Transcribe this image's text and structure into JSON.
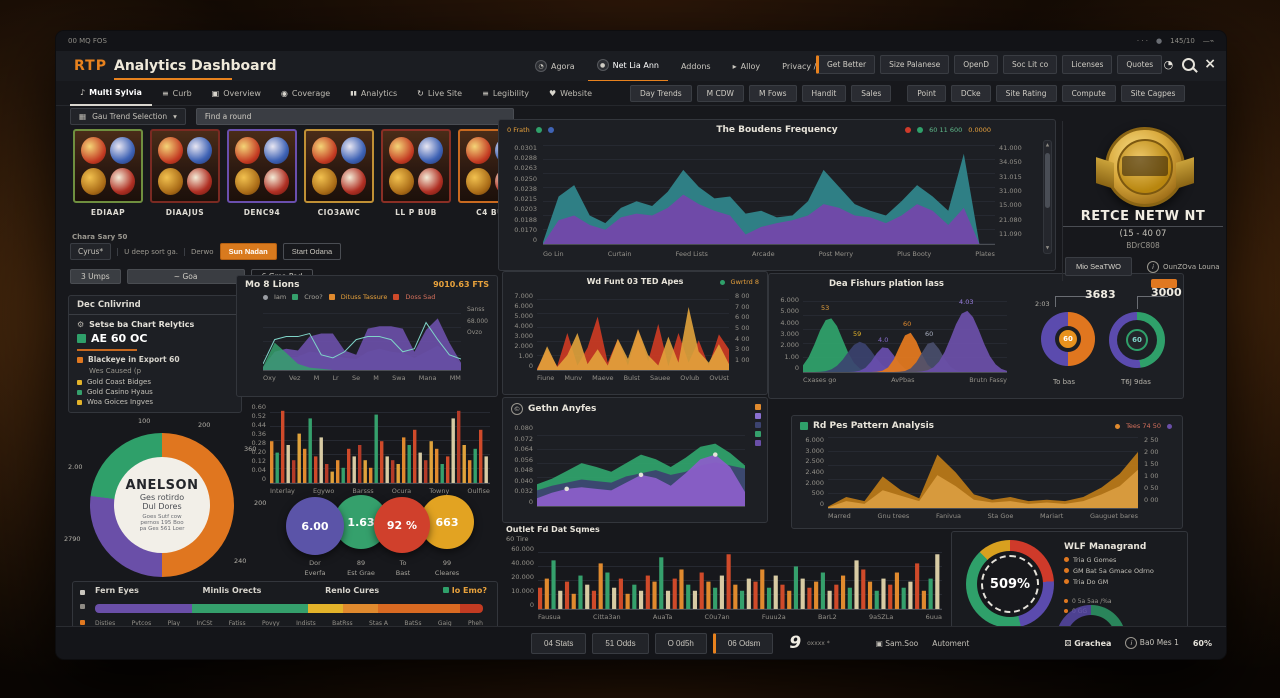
{
  "icons": {
    "gear": "⚙",
    "close": "×",
    "heart": "♥",
    "note": "♪",
    "eye": "◉",
    "pause": "▮▮",
    "sync": "↻",
    "menu": "≡",
    "caret": "▾",
    "clock": "◔",
    "pointer": "▸",
    "dice": "⚄",
    "grid": "▦",
    "box": "▣",
    "coin": "●",
    "up": "▲",
    "down": "▼",
    "dots": "⋯",
    "home": "▣"
  },
  "titlebar": {
    "left": "00  MQ FOS",
    "dots": "· · ·",
    "right": "145/10",
    "end": "—⌁"
  },
  "header": {
    "brand": "RTP",
    "title": "Analytics Dashboard",
    "tabs": [
      {
        "label": "Agora"
      },
      {
        "label": "Net Lia Ann"
      },
      {
        "label": "Addons"
      },
      {
        "label": "Alloy"
      },
      {
        "label": "Privacy / Matrices"
      }
    ],
    "pills": [
      "Get Better",
      "Size Palanese",
      "OpenD",
      "Soc Lit co",
      "Licenses",
      "Quotes"
    ]
  },
  "nav": {
    "items": [
      "Multi Sylvia",
      "Curb",
      "Overview",
      "Coverage",
      "Analytics",
      "Live Site",
      "Legibility",
      "Website"
    ],
    "pills": [
      "Day Trends",
      "M CDW",
      "M Fows",
      "Handit",
      "Sales"
    ],
    "pills2": [
      "Point",
      "DCke",
      "Site Rating",
      "Compute",
      "Site Cagpes"
    ]
  },
  "filters": {
    "dropdown": "Gau Trend Selection",
    "search": "Find a round"
  },
  "slots": {
    "items": [
      {
        "label": "EDIAAP"
      },
      {
        "label": "DIAAJUS"
      },
      {
        "label": "DENC94"
      },
      {
        "label": "CIO3AWC"
      },
      {
        "label": "LL P BUB"
      },
      {
        "label": "C4 BUB"
      }
    ]
  },
  "right_panel": {
    "title": "RETCE NETW NT",
    "sub1": "(15 - 40 07",
    "sub2": "BDrC808",
    "button": "Mio SeaTWO",
    "link": "OunZOva Louna"
  },
  "controls": {
    "caption": "Chara Sary 50",
    "field1": "Cyrus*",
    "field2": "U deep sort ga.",
    "field3": "Derwo",
    "primary": "Sun Nadan",
    "ghost": "Start Odana",
    "pill1": "3 Umps",
    "pill2": "~ Goa",
    "pill3": "6 Gma Pad"
  },
  "dec_panel": {
    "header": "Dec Cnlivrind",
    "row1": "Setse ba Chart Relytics",
    "badge": "AE 60 OC",
    "row2": "Blackeye in Export 60",
    "row3": "Wes Caused (p",
    "bullets": [
      {
        "label": "Gold Coast Bidges",
        "color": "#e3b32a"
      },
      {
        "label": "Gold Casino Hyaus",
        "color": "#35a06c"
      },
      {
        "label": "Woa Goices Ingves",
        "color": "#e3b32a"
      }
    ]
  },
  "kpis": [
    {
      "value": "6.00",
      "l1": "Dor",
      "l2": "Everfa",
      "color": "#5b54a8"
    },
    {
      "value": "1.63",
      "l1": "89",
      "l2": "Est Grae",
      "color": "#35a06c"
    },
    {
      "value": "92 %",
      "l1": "To",
      "l2": "Bast",
      "color": "#d0402c"
    },
    {
      "value": "663",
      "l1": "99",
      "l2": "Cleares",
      "color": "#e2a322"
    }
  ],
  "wlf": {
    "title": "WLF Managrand",
    "items": [
      "Tria G Gomes",
      "GM Bat 5a Gmace Odrno",
      "Tria Do GM"
    ],
    "items2": [
      "0 5a 5aa /%a",
      "0 GG"
    ]
  },
  "bottombar": {
    "buttons": [
      "04 Stats",
      "51 Odds",
      "O 0d5h",
      "06 Odsm"
    ],
    "logo": "9",
    "logo_sub": "oxxxx *",
    "mid": [
      "Sam.Soo",
      "Automent"
    ],
    "dice_label": "Grachea",
    "info_label": "Ba0 Mes 1",
    "pct": "60%"
  },
  "chart_data": [
    {
      "name": "bonus_frequency",
      "type": "area",
      "title": "The Boudens Frequency",
      "legend_left": "0 Frath",
      "legend_right": "60 11 600",
      "corner_right": "0.0000",
      "x": [
        "Go Lin",
        "Curtain",
        "Feed Lists",
        "Arcade",
        "Post Merry",
        "Plus Booty",
        "Plates"
      ],
      "y_left": [
        "0.0301",
        "0.0288",
        "0.0263",
        "0.0250",
        "0.0238",
        "0.0215",
        "0.0203",
        "0.0188",
        "0.0170",
        "0"
      ],
      "y_right": [
        "41.000",
        "34.050",
        "31.015",
        "31.000",
        "15.000",
        "21.080",
        "11.090"
      ],
      "ylim": [
        0,
        45000
      ],
      "grid": true,
      "legend_position": "top",
      "series": [
        {
          "name": "bonus-high",
          "color": "#2f7f85",
          "opacity": 1,
          "values": [
            0.02,
            0.5,
            0.62,
            0.3,
            0.22,
            0.38,
            0.45,
            0.4,
            0.55,
            0.78,
            0.6,
            0.48,
            0.5,
            0.32,
            0.35,
            0.28,
            0.3,
            0.45,
            0.78,
            0.6,
            0.42,
            0.35,
            0.3,
            0.45,
            0.62,
            0.5,
            0.35,
            0.95,
            0,
            0
          ]
        },
        {
          "name": "bonus-base",
          "color": "#6f4aa8",
          "opacity": 1,
          "values": [
            0,
            0.25,
            0.3,
            0.2,
            0.15,
            0.28,
            0.32,
            0.3,
            0.38,
            0.52,
            0.42,
            0.35,
            0.3,
            0.1,
            0.18,
            0.22,
            0.25,
            0.3,
            0.42,
            0.38,
            0.3,
            0.28,
            0.22,
            0.3,
            0.42,
            0.35,
            0.2,
            0.38,
            0,
            0
          ]
        }
      ]
    },
    {
      "name": "mo_8_lions",
      "type": "area",
      "title": "Mo 8 Lions",
      "value": "9010.63 FTS",
      "legend": [
        {
          "label": "Iam",
          "color": "#9a9da3"
        },
        {
          "label": "Croo?",
          "color": "#35a06c"
        },
        {
          "label": "Dituss Tassure",
          "color": "#e08a2e"
        },
        {
          "label": "Doss Sad",
          "color": "#cf4a2a"
        }
      ],
      "side": [
        "Sanss",
        "68.000",
        "Ovzo"
      ],
      "x": [
        "Oxy",
        "Vez",
        "M",
        "Lr",
        "Se",
        "M",
        "Swa",
        "Mana",
        "MM"
      ],
      "series": [
        {
          "name": "navy",
          "color": "#3c4370",
          "opacity": 0.9,
          "values": [
            0.02,
            0.15,
            0.2,
            0.22,
            0.3,
            0.28,
            0.25,
            0.2,
            0.18,
            0.3,
            0.35,
            0.3,
            0.28,
            0.2,
            0.3,
            0.4,
            0.25,
            0.1
          ]
        },
        {
          "name": "purple",
          "color": "#6a4fa8",
          "opacity": 0.92,
          "values": [
            0.05,
            0.3,
            0.35,
            0.32,
            0.55,
            0.6,
            0.6,
            0.32,
            0.25,
            0.68,
            0.72,
            0.72,
            0.68,
            0.3,
            0.66,
            0.85,
            0.45,
            0.12
          ]
        },
        {
          "name": "green",
          "color": "#35a06c",
          "opacity": 0.85,
          "values": [
            0.05,
            0.45,
            0.28,
            0.1,
            0.04,
            0.02,
            0,
            0,
            0,
            0,
            0,
            0,
            0,
            0,
            0,
            0,
            0,
            0
          ]
        },
        {
          "name": "teal-line",
          "color": "#7fd4c8",
          "line": true,
          "values": [
            0.1,
            0.5,
            0.55,
            0.55,
            0.6,
            0.25,
            0.2,
            0.3,
            0.5,
            0.55,
            0.55,
            0.5,
            0.3,
            0.35,
            0.78,
            0.5,
            0.25,
            0.18
          ]
        }
      ]
    },
    {
      "name": "rtp_distribution_bars",
      "type": "bar",
      "y": [
        "0.60",
        "0.52",
        "0.44",
        "0.36",
        "0.28",
        "0.20",
        "0.12",
        "0.04",
        "0"
      ],
      "x": [
        "Interlay",
        "Egywo",
        "Barsss",
        "Ocura",
        "Towny",
        "Oulfise"
      ],
      "colors": [
        "#e08a2e",
        "#35a06c",
        "#cf4a2a",
        "#d8cba4",
        "#b33b28",
        "#e0a33c"
      ],
      "values": [
        0.55,
        0.4,
        0.95,
        0.5,
        0.3,
        0.65,
        0.45,
        0.85,
        0.35,
        0.6,
        0.25,
        0.15,
        0.3,
        0.2,
        0.45,
        0.35,
        0.5,
        0.3,
        0.2,
        0.9,
        0.55,
        0.35,
        0.3,
        0.25,
        0.6,
        0.5,
        0.7,
        0.4,
        0.3,
        0.55,
        0.45,
        0.25,
        0.35,
        0.85,
        0.95,
        0.5,
        0.3,
        0.45,
        0.7,
        0.35
      ]
    },
    {
      "name": "wd_funt_spikes",
      "type": "area",
      "title": "Wd Funt 03 TED Apes",
      "legend": "Gwrtrd 8",
      "y_left": [
        "7.000",
        "6.000",
        "5.000",
        "4.000",
        "3.000",
        "2.000",
        "1.00",
        "0"
      ],
      "y_right": [
        "8 00",
        "7 00",
        "6 00",
        "5 00",
        "4 00",
        "3 00",
        "1 00"
      ],
      "x": [
        "Fiune",
        "Munv",
        "Maeve",
        "Bulst",
        "Sauee",
        "Ovlub",
        "OvUst"
      ],
      "series": [
        {
          "name": "red-spikes",
          "color": "#c73a24",
          "opacity": 0.95,
          "values": [
            0.02,
            0.28,
            0.05,
            0.5,
            0.06,
            0.3,
            0.72,
            0.1,
            0.42,
            0.06,
            0.55,
            0.12,
            0.62,
            0.05,
            0.5,
            0.1,
            0.4,
            0.06,
            0.48,
            0.28
          ]
        },
        {
          "name": "amber-spikes",
          "color": "#e2a33c",
          "opacity": 0.9,
          "values": [
            0,
            0.32,
            0.04,
            0.2,
            0.5,
            0.08,
            0.28,
            0.06,
            0.42,
            0.15,
            0.55,
            0.2,
            0.06,
            0.45,
            0.1,
            0.85,
            0.25,
            0.1,
            0.35,
            0.08
          ]
        }
      ]
    },
    {
      "name": "gethn_anyfes",
      "type": "area",
      "title": "Gethn Anyfes",
      "y_left": [
        "0.080",
        "0.072",
        "0.064",
        "0.056",
        "0.048",
        "0.040",
        "0.032",
        "0"
      ],
      "legend_colors": [
        "#e08a2e",
        "#8a6fd0",
        "#3c4370",
        "#35a06c",
        "#6a4fa8"
      ],
      "series": [
        {
          "name": "green",
          "color": "#2fa06a",
          "opacity": 0.95,
          "values": [
            0.28,
            0.35,
            0.45,
            0.55,
            0.5,
            0.44,
            0.55,
            0.66,
            0.6,
            0.5,
            0.62,
            0.76,
            0.8,
            0.68,
            0.52
          ]
        },
        {
          "name": "navy",
          "color": "#3c4370",
          "opacity": 0.95,
          "values": [
            0.2,
            0.26,
            0.3,
            0.34,
            0.32,
            0.3,
            0.38,
            0.42,
            0.46,
            0.4,
            0.44,
            0.52,
            0.56,
            0.52,
            0.48
          ]
        },
        {
          "name": "purple",
          "color": "#8a5fc8",
          "opacity": 0.95,
          "values": [
            0.1,
            0.17,
            0.22,
            0.24,
            0.22,
            0.2,
            0.3,
            0.4,
            0.36,
            0.26,
            0.42,
            0.6,
            0.66,
            0.5,
            0.18
          ]
        }
      ],
      "markers": [
        {
          "series": 2,
          "i": 2
        },
        {
          "series": 2,
          "i": 7
        },
        {
          "series": 2,
          "i": 12
        }
      ]
    },
    {
      "name": "outlet_fd_bars",
      "type": "bar",
      "title": "Outlet Fd Dat Sqmes",
      "sub": "60 Tire",
      "y": [
        "60.000",
        "40.000",
        "20.000",
        "10.000",
        "0"
      ],
      "x": [
        "Fausua",
        "Citta3an",
        "AuaTa",
        "C0u7an",
        "Fuuu2a",
        "BarL2",
        "9aSZLa",
        "6uua"
      ],
      "colors": [
        "#cf4a2a",
        "#e08a2e",
        "#35a06c",
        "#d8cba4"
      ],
      "values": [
        0.35,
        0.5,
        0.8,
        0.3,
        0.45,
        0.25,
        0.55,
        0.4,
        0.3,
        0.75,
        0.6,
        0.35,
        0.5,
        0.25,
        0.4,
        0.3,
        0.55,
        0.45,
        0.85,
        0.3,
        0.5,
        0.65,
        0.4,
        0.3,
        0.6,
        0.45,
        0.35,
        0.55,
        0.9,
        0.4,
        0.3,
        0.5,
        0.45,
        0.65,
        0.35,
        0.55,
        0.4,
        0.3,
        0.7,
        0.5,
        0.35,
        0.45,
        0.6,
        0.3,
        0.4,
        0.55,
        0.35,
        0.8,
        0.65,
        0.45,
        0.3,
        0.5,
        0.4,
        0.6,
        0.35,
        0.45,
        0.75,
        0.3,
        0.5,
        0.9
      ]
    },
    {
      "name": "dea_fishurs_ridges",
      "type": "ridges",
      "title": "Dea Fishurs plation lass",
      "y": [
        "6.000",
        "5.000",
        "4.000",
        "3.000",
        "2.000",
        "1.00",
        "0"
      ],
      "x": [
        "Cxases go",
        "AvPbas",
        "Brutn Fassy"
      ],
      "bells": [
        {
          "color": "#2fa06a",
          "pos": 0.13,
          "peak": 0.75,
          "w": 0.09,
          "opacity": 0.95
        },
        {
          "color": "#3c4370",
          "pos": 0.28,
          "peak": 0.42,
          "w": 0.09,
          "opacity": 0.9
        },
        {
          "color": "#6a4fb0",
          "pos": 0.4,
          "peak": 0.35,
          "w": 0.07,
          "opacity": 0.9
        },
        {
          "color": "#e07820",
          "pos": 0.52,
          "peak": 0.55,
          "w": 0.07,
          "opacity": 0.95
        },
        {
          "color": "#4a4f6e",
          "pos": 0.63,
          "peak": 0.42,
          "w": 0.07,
          "opacity": 0.9
        },
        {
          "color": "#6a4fa8",
          "pos": 0.8,
          "peak": 0.85,
          "w": 0.1,
          "opacity": 0.95
        }
      ],
      "peaks": [
        {
          "t": "53",
          "c": "#e8a23c"
        },
        {
          "t": "59",
          "c": "#e3b32a"
        },
        {
          "t": "4.0",
          "c": "#8a6fd0"
        },
        {
          "t": "60",
          "c": "#e08a2e"
        },
        {
          "t": "60",
          "c": "#aab0c0"
        },
        {
          "t": "4.03",
          "c": "#9a7fe0"
        }
      ]
    },
    {
      "name": "to_bas_donut",
      "type": "pie",
      "value": "3683",
      "callout": "2:03",
      "center": "60",
      "label": "To bas",
      "segments": [
        {
          "color": "#e0761f",
          "pct": 50
        },
        {
          "color": "#5b4bae",
          "pct": 50
        }
      ]
    },
    {
      "name": "t6j_donut",
      "type": "pie",
      "value": "3000",
      "center": "60",
      "label": "T6J 9das",
      "segments": [
        {
          "color": "#2fa06a",
          "pct": 48
        },
        {
          "color": "#5b4bae",
          "pct": 52
        }
      ]
    },
    {
      "name": "rd_pattern",
      "type": "area",
      "title": "Rd Pes Pattern Analysis",
      "legend": "Tees 74 50",
      "y_left": [
        "6.000",
        "3.000",
        "2.500",
        "2.400",
        "2.000",
        "500",
        "0"
      ],
      "y_right": [
        "2 50",
        "2 00",
        "1 50",
        "1 00",
        "0 50",
        "0 00"
      ],
      "x": [
        "Marred",
        "Gnu trees",
        "Fanivua",
        "Sta Goe",
        "Mariart",
        "Gauguet bares"
      ],
      "series": [
        {
          "name": "amber-dark",
          "color": "#b87818",
          "opacity": 0.95,
          "values": [
            0.02,
            0.16,
            0.1,
            0.46,
            0.26,
            0.14,
            0.78,
            0.52,
            0.2,
            0.12,
            0.16,
            0.1,
            0.12,
            0.1,
            0.16,
            0.3,
            0.5,
            0.82
          ]
        },
        {
          "name": "amber-light",
          "color": "#d99c3f",
          "opacity": 0.95,
          "values": [
            0.01,
            0.1,
            0.06,
            0.26,
            0.18,
            0.1,
            0.48,
            0.32,
            0.12,
            0.08,
            0.1,
            0.06,
            0.08,
            0.06,
            0.1,
            0.2,
            0.32,
            0.56
          ]
        }
      ]
    },
    {
      "name": "win_gauge",
      "type": "pie",
      "value": "509%",
      "segments": [
        {
          "color": "#cf3a2a",
          "pct": 24
        },
        {
          "color": "#5b4bae",
          "pct": 22
        },
        {
          "color": "#2fa06a",
          "pct": 42
        },
        {
          "color": "#d8a01f",
          "pct": 12
        }
      ]
    },
    {
      "name": "anelson_donut",
      "type": "pie",
      "center_title": "ANELSON",
      "center_sub1": "Ges rotirdo",
      "center_sub2": "Dul Dores",
      "center_note1": "Goes Sutf cow",
      "center_note2": "pernos 195 Boo",
      "center_note3": "pa Ges 561 Loer",
      "ring_labels": [
        "100",
        "200",
        "360",
        "200",
        "240",
        "380",
        "3000",
        "2790",
        "2.00"
      ],
      "segments": [
        {
          "color": "#e0761f",
          "pct": 50
        },
        {
          "color": "#6a4fa8",
          "pct": 27
        },
        {
          "color": "#2fa06a",
          "pct": 23
        }
      ]
    },
    {
      "name": "fern_eyes_hbar",
      "type": "hbar",
      "headers": [
        "Fern Eyes",
        "Minlis Orects",
        "Renlo Cures"
      ],
      "right": "Io Emo?",
      "ticks": [
        "Disties",
        "Pvtcos",
        "Play",
        "InCSt",
        "Fatiss",
        "Povyy",
        "Indists",
        "BatRss",
        "Stas A",
        "BatSs",
        "Gaig",
        "Pheh"
      ],
      "segments": [
        {
          "color": "#6a4fa8",
          "pct": 25
        },
        {
          "color": "#35a06c",
          "pct": 30
        },
        {
          "color": "#e3b32a",
          "pct": 9
        },
        {
          "color": "#e08a2e",
          "pct": 9
        },
        {
          "color": "#d96a22",
          "pct": 21
        },
        {
          "color": "#c23b22",
          "pct": 6
        }
      ]
    }
  ]
}
